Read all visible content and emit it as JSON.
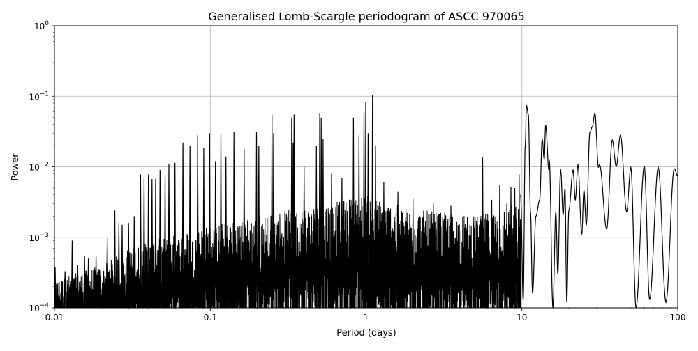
{
  "chart_data": {
    "type": "line",
    "title": "Generalised Lomb-Scargle periodogram of ASCC 970065",
    "xlabel": "Period (days)",
    "ylabel": "Power",
    "xscale": "log",
    "yscale": "log",
    "xlim": [
      0.01,
      100
    ],
    "ylim": [
      0.0001,
      1
    ],
    "grid": true,
    "line_color": "#000000",
    "grid_color": "#b0b0b0",
    "x_ticks": [
      {
        "value": 0.01,
        "label": "0.01"
      },
      {
        "value": 0.1,
        "label": "0.1"
      },
      {
        "value": 1,
        "label": "1"
      },
      {
        "value": 10,
        "label": "10"
      },
      {
        "value": 100,
        "label": "100"
      }
    ],
    "y_ticks": [
      {
        "value": 0.0001,
        "base": "10",
        "exp": "−4"
      },
      {
        "value": 0.001,
        "base": "10",
        "exp": "−3"
      },
      {
        "value": 0.01,
        "base": "10",
        "exp": "−2"
      },
      {
        "value": 0.1,
        "base": "10",
        "exp": "−1"
      },
      {
        "value": 1,
        "base": "10",
        "exp": "0"
      }
    ],
    "noise_envelope": [
      [
        0.01,
        0.00025
      ],
      [
        0.02,
        0.0004
      ],
      [
        0.03,
        0.0007
      ],
      [
        0.05,
        0.001
      ],
      [
        0.1,
        0.0015
      ],
      [
        0.2,
        0.002
      ],
      [
        0.5,
        0.003
      ],
      [
        1,
        0.004
      ],
      [
        2,
        0.0025
      ],
      [
        5,
        0.002
      ],
      [
        9,
        0.003
      ]
    ],
    "peaks": [
      [
        0.0101,
        0.00038
      ],
      [
        0.0117,
        0.00033
      ],
      [
        0.013,
        0.0009
      ],
      [
        0.0141,
        0.0004
      ],
      [
        0.0156,
        0.00055
      ],
      [
        0.0165,
        0.0005
      ],
      [
        0.0185,
        0.00055
      ],
      [
        0.0218,
        0.00098
      ],
      [
        0.0244,
        0.0024
      ],
      [
        0.0259,
        0.0016
      ],
      [
        0.0272,
        0.0015
      ],
      [
        0.0299,
        0.0016
      ],
      [
        0.0325,
        0.002
      ],
      [
        0.0357,
        0.0078
      ],
      [
        0.0376,
        0.0068
      ],
      [
        0.0401,
        0.0078
      ],
      [
        0.0423,
        0.0067
      ],
      [
        0.0446,
        0.0068
      ],
      [
        0.0476,
        0.009
      ],
      [
        0.0513,
        0.0075
      ],
      [
        0.0543,
        0.011
      ],
      [
        0.0594,
        0.0114
      ],
      [
        0.0668,
        0.022
      ],
      [
        0.0741,
        0.02
      ],
      [
        0.083,
        0.028
      ],
      [
        0.0908,
        0.0185
      ],
      [
        0.099,
        0.03
      ],
      [
        0.108,
        0.012
      ],
      [
        0.117,
        0.029
      ],
      [
        0.126,
        0.014
      ],
      [
        0.142,
        0.031
      ],
      [
        0.165,
        0.018
      ],
      [
        0.198,
        0.031
      ],
      [
        0.205,
        0.02
      ],
      [
        0.249,
        0.055
      ],
      [
        0.255,
        0.03
      ],
      [
        0.333,
        0.05
      ],
      [
        0.34,
        0.022
      ],
      [
        0.345,
        0.055
      ],
      [
        0.4,
        0.01
      ],
      [
        0.48,
        0.02
      ],
      [
        0.504,
        0.058
      ],
      [
        0.515,
        0.05
      ],
      [
        0.53,
        0.025
      ],
      [
        0.6,
        0.008
      ],
      [
        0.7,
        0.007
      ],
      [
        0.83,
        0.05
      ],
      [
        0.9,
        0.028
      ],
      [
        0.97,
        0.06
      ],
      [
        0.995,
        0.083
      ],
      [
        1.03,
        0.03
      ],
      [
        1.1,
        0.105
      ],
      [
        1.15,
        0.02
      ],
      [
        1.3,
        0.006
      ],
      [
        1.6,
        0.0045
      ],
      [
        2.0,
        0.0035
      ],
      [
        2.7,
        0.003
      ],
      [
        3.5,
        0.0028
      ],
      [
        5.6,
        0.0135
      ],
      [
        6.4,
        0.0034
      ],
      [
        7.2,
        0.0055
      ],
      [
        8.0,
        0.003
      ],
      [
        8.5,
        0.0052
      ],
      [
        9.0,
        0.005
      ],
      [
        9.6,
        0.0078
      ]
    ],
    "smooth_curve": [
      [
        9.8,
        0.004
      ],
      [
        10.2,
        0.00013
      ],
      [
        10.5,
        0.02
      ],
      [
        10.7,
        0.074
      ],
      [
        11.0,
        0.055
      ],
      [
        11.35,
        0.00225
      ],
      [
        11.7,
        0.00016
      ],
      [
        12.3,
        0.002
      ],
      [
        13.0,
        0.0034
      ],
      [
        13.5,
        0.0245
      ],
      [
        13.9,
        0.0128
      ],
      [
        14.2,
        0.039
      ],
      [
        14.9,
        0.009
      ],
      [
        15.0,
        0.012
      ],
      [
        15.8,
        0.0001
      ],
      [
        16.5,
        0.0023
      ],
      [
        17.0,
        0.0003
      ],
      [
        17.7,
        0.0092
      ],
      [
        18.4,
        0.0021
      ],
      [
        18.9,
        0.0049
      ],
      [
        19.4,
        0.00012
      ],
      [
        20.0,
        0.0024
      ],
      [
        21.3,
        0.009
      ],
      [
        22.0,
        0.0034
      ],
      [
        22.9,
        0.0107
      ],
      [
        24.2,
        0.0011
      ],
      [
        25.0,
        0.0046
      ],
      [
        25.9,
        0.0015
      ],
      [
        27.3,
        0.031
      ],
      [
        28.3,
        0.037
      ],
      [
        29.4,
        0.058
      ],
      [
        31.0,
        0.0098
      ],
      [
        31.5,
        0.0107
      ],
      [
        35.0,
        0.0013
      ],
      [
        38.0,
        0.024
      ],
      [
        40.3,
        0.0101
      ],
      [
        42.9,
        0.028
      ],
      [
        47.0,
        0.0023
      ],
      [
        50.0,
        0.0098
      ],
      [
        54.0,
        0.0001
      ],
      [
        61.0,
        0.0103
      ],
      [
        66.0,
        0.00013
      ],
      [
        75.0,
        0.0098
      ],
      [
        84.0,
        0.00012
      ],
      [
        95.0,
        0.0094
      ],
      [
        100.0,
        0.0074
      ]
    ]
  }
}
